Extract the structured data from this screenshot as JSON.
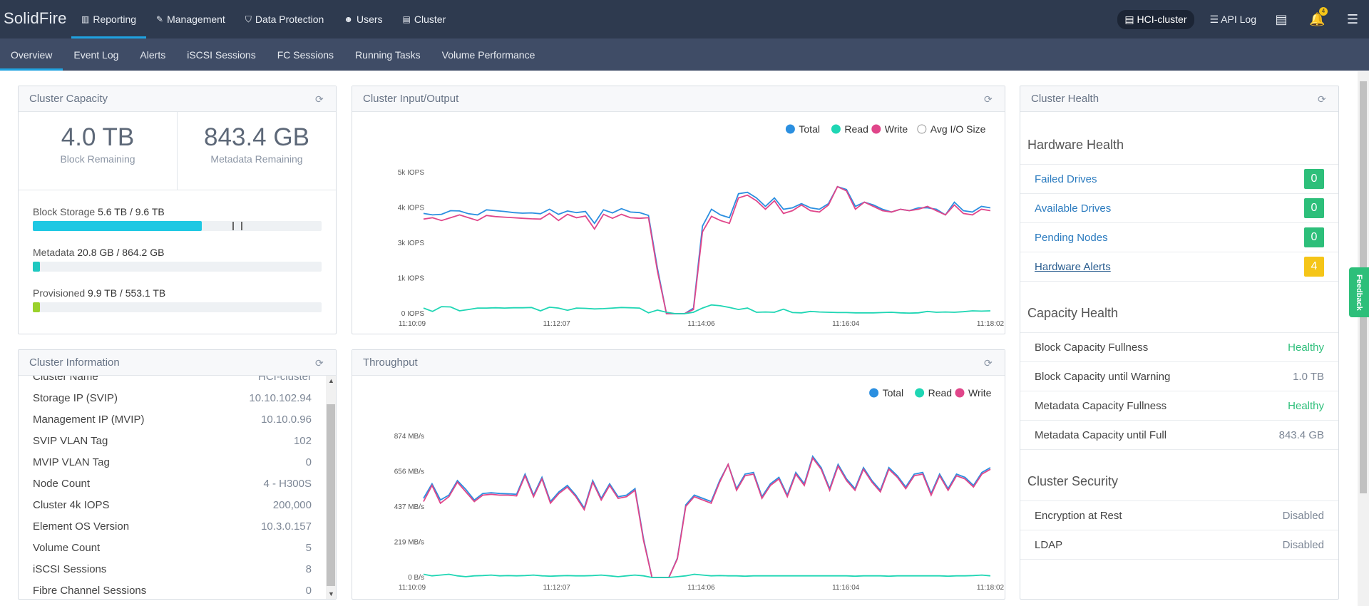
{
  "brand": "SolidFire",
  "nav": [
    {
      "label": "Reporting",
      "icon": "chart-icon",
      "active": true
    },
    {
      "label": "Management",
      "icon": "wrench-icon"
    },
    {
      "label": "Data Protection",
      "icon": "shield-icon"
    },
    {
      "label": "Users",
      "icon": "users-icon"
    },
    {
      "label": "Cluster",
      "icon": "cluster-icon"
    }
  ],
  "right": {
    "cluster": "HCI-cluster",
    "api_log": "API Log",
    "notif_count": "4"
  },
  "subnav": [
    "Overview",
    "Event Log",
    "Alerts",
    "iSCSI Sessions",
    "FC Sessions",
    "Running Tasks",
    "Volume Performance"
  ],
  "capacity": {
    "title": "Cluster Capacity",
    "block_remaining": "4.0 TB",
    "block_remaining_label": "Block Remaining",
    "meta_remaining": "843.4 GB",
    "meta_remaining_label": "Metadata Remaining",
    "bars": [
      {
        "label": "Block Storage",
        "value": "5.6 TB / 9.6 TB",
        "fraction": 0.585,
        "color": "#1fc8e3"
      },
      {
        "label": "Metadata",
        "value": "20.8 GB / 864.2 GB",
        "fraction": 0.024,
        "color": "#1fc8c0"
      },
      {
        "label": "Provisioned",
        "value": "9.9 TB / 553.1 TB",
        "fraction": 0.018,
        "color": "#9ad12b"
      }
    ]
  },
  "info": {
    "title": "Cluster Information",
    "rows": [
      {
        "k": "Cluster Name",
        "v": "HCI-cluster"
      },
      {
        "k": "Storage IP (SVIP)",
        "v": "10.10.102.94"
      },
      {
        "k": "Management IP (MVIP)",
        "v": "10.10.0.96"
      },
      {
        "k": "SVIP VLAN Tag",
        "v": "102"
      },
      {
        "k": "MVIP VLAN Tag",
        "v": "0"
      },
      {
        "k": "Node Count",
        "v": "4 - H300S"
      },
      {
        "k": "Cluster 4k IOPS",
        "v": "200,000"
      },
      {
        "k": "Element OS Version",
        "v": "10.3.0.157"
      },
      {
        "k": "Volume Count",
        "v": "5"
      },
      {
        "k": "iSCSI Sessions",
        "v": "8"
      },
      {
        "k": "Fibre Channel Sessions",
        "v": "0"
      }
    ]
  },
  "io": {
    "title": "Cluster Input/Output",
    "legend": [
      "Total",
      "Read",
      "Write",
      "Avg I/O Size"
    ]
  },
  "tp": {
    "title": "Throughput",
    "legend": [
      "Total",
      "Read",
      "Write"
    ]
  },
  "health": {
    "title": "Cluster Health",
    "hw_title": "Hardware Health",
    "hw": [
      {
        "k": "Failed Drives",
        "v": "0",
        "color": "#2dbf7a"
      },
      {
        "k": "Available Drives",
        "v": "0",
        "color": "#2dbf7a"
      },
      {
        "k": "Pending Nodes",
        "v": "0",
        "color": "#2dbf7a"
      },
      {
        "k": "Hardware Alerts",
        "v": "4",
        "color": "#f5c518"
      }
    ],
    "cap_title": "Capacity Health",
    "cap": [
      {
        "k": "Block Capacity Fullness",
        "v": "Healthy"
      },
      {
        "k": "Block Capacity until Warning",
        "v": "1.0 TB"
      },
      {
        "k": "Metadata Capacity Fullness",
        "v": "Healthy"
      },
      {
        "k": "Metadata Capacity until Full",
        "v": "843.4 GB"
      }
    ],
    "sec_title": "Cluster Security",
    "sec": [
      {
        "k": "Encryption at Rest",
        "v": "Disabled"
      },
      {
        "k": "LDAP",
        "v": "Disabled"
      }
    ]
  },
  "feedback": "Feedback",
  "colors": {
    "total": "#2b8fe0",
    "read": "#1fd6b4",
    "write": "#e0468a"
  },
  "chart_data": [
    {
      "type": "line",
      "title": "Cluster Input/Output",
      "x_ticks": [
        "11:10:09",
        "11:12:07",
        "11:14:06",
        "11:16:04",
        "11:18:02"
      ],
      "y_ticks": [
        "0 IOPS",
        "1k IOPS",
        "3k IOPS",
        "4k IOPS",
        "5k IOPS"
      ],
      "ylim": [
        0,
        5000
      ],
      "series": [
        {
          "name": "Total",
          "values": [
            3550,
            3500,
            3520,
            3650,
            3640,
            3540,
            3500,
            3680,
            3650,
            3620,
            3580,
            3560,
            3570,
            3540,
            3700,
            3520,
            3640,
            3580,
            3620,
            3200,
            3680,
            3570,
            3720,
            3600,
            3580,
            3480,
            1600,
            0,
            0,
            0,
            200,
            3100,
            3700,
            3500,
            3400,
            4250,
            4300,
            4100,
            3800,
            4100,
            3700,
            3750,
            3900,
            3750,
            3700,
            3900,
            4500,
            4400,
            3800,
            3950,
            3850,
            3700,
            3600,
            3700,
            3650,
            3750,
            3750,
            3700,
            3500,
            3950,
            3650,
            3600,
            3800,
            3750
          ]
        },
        {
          "name": "Read",
          "values": [
            200,
            80,
            250,
            240,
            100,
            150,
            200,
            200,
            210,
            200,
            210,
            210,
            220,
            100,
            230,
            200,
            120,
            200,
            190,
            170,
            180,
            200,
            220,
            210,
            200,
            30,
            130,
            50,
            0,
            0,
            50,
            200,
            310,
            280,
            220,
            150,
            200,
            50,
            60,
            50,
            160,
            40,
            30,
            80,
            60,
            50,
            40,
            40,
            30,
            30,
            30,
            40,
            50,
            30,
            20,
            30,
            80,
            50,
            60,
            50,
            70,
            100,
            90,
            100
          ]
        },
        {
          "name": "Write",
          "values": [
            3350,
            3400,
            3300,
            3400,
            3500,
            3400,
            3300,
            3480,
            3440,
            3420,
            3400,
            3380,
            3360,
            3350,
            3550,
            3300,
            3520,
            3400,
            3460,
            3000,
            3520,
            3380,
            3520,
            3400,
            3380,
            3400,
            1500,
            0,
            0,
            0,
            150,
            2900,
            3450,
            3300,
            3200,
            4100,
            4200,
            4000,
            3700,
            4000,
            3550,
            3650,
            3850,
            3650,
            3600,
            3850,
            4500,
            4350,
            3700,
            3950,
            3800,
            3650,
            3600,
            3700,
            3650,
            3700,
            3800,
            3650,
            3500,
            3850,
            3550,
            3500,
            3700,
            3650
          ]
        }
      ]
    },
    {
      "type": "line",
      "title": "Throughput",
      "x_ticks": [
        "11:10:09",
        "11:12:07",
        "11:14:06",
        "11:16:04",
        "11:18:02"
      ],
      "y_ticks": [
        "0 B/s",
        "219 MB/s",
        "437 MB/s",
        "656 MB/s",
        "874 MB/s"
      ],
      "ylim": [
        0,
        874
      ],
      "series": [
        {
          "name": "Total",
          "values": [
            490,
            580,
            480,
            510,
            600,
            545,
            480,
            520,
            525,
            520,
            518,
            515,
            640,
            510,
            620,
            470,
            530,
            570,
            510,
            430,
            600,
            490,
            580,
            500,
            510,
            550,
            240,
            0,
            0,
            0,
            120,
            450,
            510,
            490,
            470,
            600,
            700,
            550,
            640,
            650,
            500,
            580,
            620,
            510,
            650,
            580,
            750,
            680,
            550,
            700,
            610,
            550,
            680,
            600,
            540,
            680,
            630,
            560,
            640,
            650,
            520,
            640,
            550,
            640,
            620,
            570,
            650,
            680
          ]
        },
        {
          "name": "Read",
          "values": [
            20,
            10,
            15,
            20,
            10,
            5,
            10,
            12,
            15,
            10,
            12,
            10,
            12,
            15,
            10,
            8,
            10,
            12,
            10,
            10,
            12,
            15,
            10,
            5,
            10,
            15,
            10,
            0,
            0,
            0,
            5,
            10,
            20,
            15,
            10,
            12,
            10,
            10,
            8,
            10,
            10,
            10,
            10,
            10,
            10,
            10,
            10,
            10,
            10,
            10,
            10,
            8,
            10,
            10,
            10,
            8,
            10,
            10,
            10,
            10,
            10,
            10,
            8,
            10,
            10,
            12,
            15,
            10
          ]
        },
        {
          "name": "Write",
          "values": [
            470,
            570,
            460,
            500,
            590,
            530,
            470,
            510,
            515,
            510,
            510,
            505,
            630,
            500,
            610,
            460,
            520,
            560,
            500,
            420,
            590,
            480,
            570,
            490,
            500,
            540,
            230,
            0,
            0,
            0,
            115,
            440,
            500,
            480,
            460,
            590,
            700,
            540,
            630,
            640,
            490,
            570,
            610,
            500,
            640,
            570,
            740,
            670,
            540,
            690,
            600,
            540,
            670,
            590,
            530,
            670,
            620,
            550,
            630,
            640,
            510,
            630,
            540,
            630,
            610,
            560,
            640,
            670
          ]
        }
      ]
    }
  ]
}
